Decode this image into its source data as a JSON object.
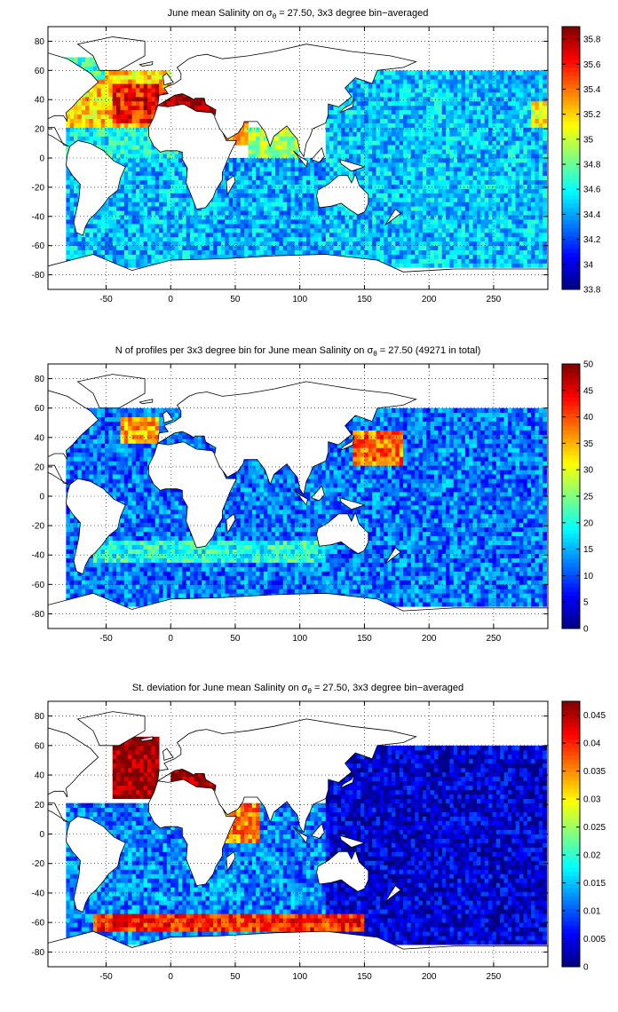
{
  "chart_data": [
    {
      "type": "heatmap",
      "title_prefix": "June mean Salinity on σ",
      "title_sub": "θ",
      "title_suffix": " = 27.50, 3x3 degree bin−averaged",
      "x_ticks": [
        "-50",
        "0",
        "50",
        "100",
        "150",
        "200",
        "250"
      ],
      "x_tick_values": [
        -50,
        0,
        50,
        100,
        150,
        200,
        250
      ],
      "y_ticks": [
        "80",
        "60",
        "40",
        "20",
        "0",
        "-20",
        "-40",
        "-60",
        "-80"
      ],
      "y_tick_values": [
        80,
        60,
        40,
        20,
        0,
        -20,
        -40,
        -60,
        -80
      ],
      "xlim": [
        -95,
        292
      ],
      "ylim": [
        -90,
        90
      ],
      "grid": "dotted",
      "colormap": "jet",
      "clim": [
        33.8,
        35.9
      ],
      "colorbar_ticks": [
        "35.8",
        "35.6",
        "35.4",
        "35.2",
        "35",
        "34.8",
        "34.6",
        "34.4",
        "34.2",
        "34",
        "33.8"
      ],
      "colorbar_tick_values": [
        35.8,
        35.6,
        35.4,
        35.2,
        35.0,
        34.8,
        34.6,
        34.4,
        34.2,
        34.0,
        33.8
      ],
      "regions": [
        {
          "x": [
            -80,
            20
          ],
          "y": [
            -75,
            0
          ],
          "value": 34.45
        },
        {
          "x": [
            20,
            120
          ],
          "y": [
            -75,
            0
          ],
          "value": 34.42
        },
        {
          "x": [
            120,
            292
          ],
          "y": [
            -75,
            60
          ],
          "value": 34.47
        },
        {
          "x": [
            -80,
            10
          ],
          "y": [
            0,
            20
          ],
          "value": 34.6
        },
        {
          "x": [
            -80,
            0
          ],
          "y": [
            20,
            60
          ],
          "value": 35.2
        },
        {
          "x": [
            -45,
            -5
          ],
          "y": [
            25,
            50
          ],
          "value": 35.6
        },
        {
          "x": [
            -20,
            0
          ],
          "y": [
            30,
            45
          ],
          "value": 35.75
        },
        {
          "x": [
            0,
            35
          ],
          "y": [
            30,
            45
          ],
          "value": 35.9
        },
        {
          "x": [
            40,
            60
          ],
          "y": [
            10,
            30
          ],
          "value": 35.3
        },
        {
          "x": [
            60,
            100
          ],
          "y": [
            0,
            20
          ],
          "value": 34.9
        },
        {
          "x": [
            -85,
            -50
          ],
          "y": [
            55,
            70
          ],
          "value": 34.7
        },
        {
          "x": [
            280,
            292
          ],
          "y": [
            20,
            40
          ],
          "value": 35.1
        }
      ]
    },
    {
      "type": "heatmap",
      "title_prefix": "N of profiles per 3x3 degree bin for June mean Salinity on σ",
      "title_sub": "θ",
      "title_suffix": " = 27.50 (49271 in total)",
      "x_ticks": [
        "-50",
        "0",
        "50",
        "100",
        "150",
        "200",
        "250"
      ],
      "x_tick_values": [
        -50,
        0,
        50,
        100,
        150,
        200,
        250
      ],
      "y_ticks": [
        "80",
        "60",
        "40",
        "20",
        "0",
        "-20",
        "-40",
        "-60",
        "-80"
      ],
      "y_tick_values": [
        80,
        60,
        40,
        20,
        0,
        -20,
        -40,
        -60,
        -80
      ],
      "xlim": [
        -95,
        292
      ],
      "ylim": [
        -90,
        90
      ],
      "grid": "dotted",
      "colormap": "jet",
      "clim": [
        0,
        50
      ],
      "colorbar_ticks": [
        "50",
        "45",
        "40",
        "35",
        "30",
        "25",
        "20",
        "15",
        "10",
        "5",
        "0"
      ],
      "colorbar_tick_values": [
        50,
        45,
        40,
        35,
        30,
        25,
        20,
        15,
        10,
        5,
        0
      ],
      "regions": [
        {
          "x": [
            -80,
            292
          ],
          "y": [
            -75,
            60
          ],
          "value": 12
        },
        {
          "x": [
            -60,
            120
          ],
          "y": [
            -45,
            -30
          ],
          "value": 20
        },
        {
          "x": [
            140,
            180
          ],
          "y": [
            20,
            45
          ],
          "value": 38
        },
        {
          "x": [
            -40,
            -10
          ],
          "y": [
            35,
            55
          ],
          "value": 35
        }
      ]
    },
    {
      "type": "heatmap",
      "title_prefix": "St. deviation for June mean Salinity on σ",
      "title_sub": "θ",
      "title_suffix": " = 27.50, 3x3 degree bin−averaged",
      "x_ticks": [
        "-50",
        "0",
        "50",
        "100",
        "150",
        "200",
        "250"
      ],
      "x_tick_values": [
        -50,
        0,
        50,
        100,
        150,
        200,
        250
      ],
      "y_ticks": [
        "80",
        "60",
        "40",
        "20",
        "0",
        "-20",
        "-40",
        "-60",
        "-80"
      ],
      "y_tick_values": [
        80,
        60,
        40,
        20,
        0,
        -20,
        -40,
        -60,
        -80
      ],
      "xlim": [
        -95,
        292
      ],
      "ylim": [
        -90,
        90
      ],
      "grid": "dotted",
      "colormap": "jet",
      "clim": [
        0,
        0.0475
      ],
      "colorbar_ticks": [
        "0.045",
        "0.04",
        "0.035",
        "0.03",
        "0.025",
        "0.02",
        "0.015",
        "0.01",
        "0.005",
        "0"
      ],
      "colorbar_tick_values": [
        0.045,
        0.04,
        0.035,
        0.03,
        0.025,
        0.02,
        0.015,
        0.01,
        0.005,
        0
      ],
      "regions": [
        {
          "x": [
            -80,
            120
          ],
          "y": [
            -75,
            20
          ],
          "value": 0.012
        },
        {
          "x": [
            120,
            292
          ],
          "y": [
            -75,
            60
          ],
          "value": 0.004
        },
        {
          "x": [
            -45,
            -10
          ],
          "y": [
            25,
            65
          ],
          "value": 0.047
        },
        {
          "x": [
            40,
            70
          ],
          "y": [
            -5,
            20
          ],
          "value": 0.035
        },
        {
          "x": [
            -60,
            150
          ],
          "y": [
            -65,
            -55
          ],
          "value": 0.04
        },
        {
          "x": [
            0,
            40
          ],
          "y": [
            30,
            45
          ],
          "value": 0.047
        }
      ]
    }
  ]
}
